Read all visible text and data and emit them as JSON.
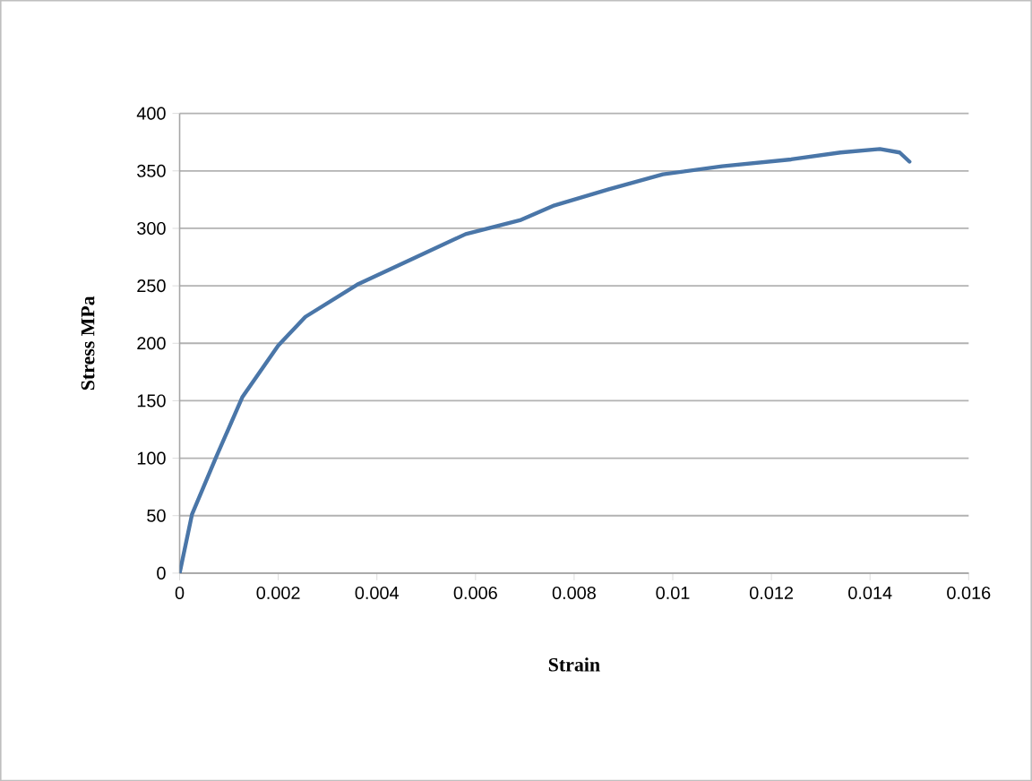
{
  "chart_data": {
    "type": "line",
    "xlabel": "Strain",
    "ylabel": "Stress MPa",
    "series": [
      {
        "color": "#4a76a8",
        "x": [
          0,
          0.00025,
          0.00073,
          0.00127,
          0.002,
          0.00255,
          0.0036,
          0.0048,
          0.0058,
          0.0069,
          0.0076,
          0.0087,
          0.0098,
          0.011,
          0.0124,
          0.0134,
          0.0142,
          0.0146,
          0.0148
        ],
        "values": [
          0,
          51,
          100,
          153,
          198,
          223,
          251,
          275,
          295,
          307,
          320,
          334,
          347,
          354,
          360,
          366,
          369,
          366,
          358
        ]
      }
    ],
    "xlim": [
      0,
      0.016
    ],
    "xticks": [
      0,
      0.002,
      0.004,
      0.006,
      0.008,
      0.01,
      0.012,
      0.014,
      0.016
    ],
    "ylim": [
      0,
      400
    ],
    "yticks": [
      0,
      50,
      100,
      150,
      200,
      250,
      300,
      350,
      400
    ],
    "grid": "y",
    "marker": "none",
    "line_style": "solid"
  }
}
